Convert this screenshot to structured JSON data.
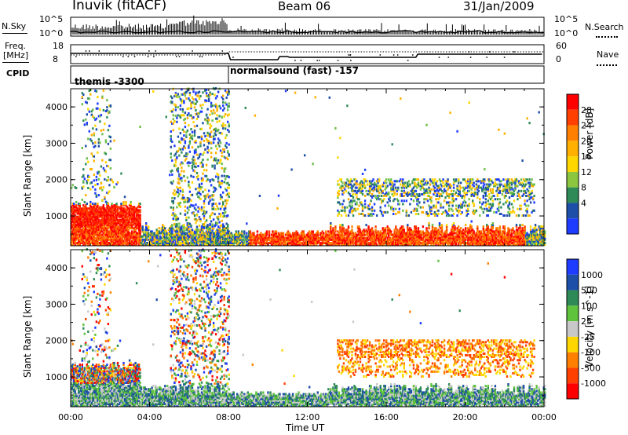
{
  "header": {
    "station": "Inuvik (fitACF)",
    "beam": "Beam 06",
    "date": "31/Jan/2009"
  },
  "nsky_panel": {
    "left_label": "N.Sky",
    "right_label": "N.Search",
    "left_ticks": [
      "10^5",
      "10^0"
    ],
    "right_ticks": [
      "10^5",
      "10^0"
    ]
  },
  "freq_panel": {
    "left_label_1": "Freq.",
    "left_label_2": "[MHz]",
    "right_label": "Nave",
    "left_ticks": [
      "18",
      "8"
    ],
    "right_ticks": [
      "60",
      "0"
    ]
  },
  "cpid_panel": {
    "label": "CPID",
    "segments": [
      {
        "label": "themis -3300",
        "start_hour": 0,
        "end_hour": 8
      },
      {
        "label": "normalsound (fast) -157",
        "start_hour": 8,
        "end_hour": 24
      }
    ]
  },
  "chart_data": [
    {
      "type": "heatmap",
      "title": "Power",
      "xlabel": "Time UT",
      "ylabel": "Slant Range [km]",
      "xlim": [
        0,
        24
      ],
      "ylim": [
        180,
        4500
      ],
      "x_ticks": [
        "00:00",
        "04:00",
        "08:00",
        "12:00",
        "16:00",
        "20:00",
        "00:00"
      ],
      "y_ticks": [
        1000,
        2000,
        3000,
        4000
      ],
      "colorbar": {
        "label": "Power [dB]",
        "ticks": [
          28,
          24,
          20,
          16,
          12,
          8,
          4
        ],
        "colors": [
          "#ff0000",
          "#ff4000",
          "#ff8000",
          "#ffb000",
          "#ffd700",
          "#8cc63f",
          "#2e8b57",
          "#1e4fa8",
          "#1e3cff"
        ]
      }
    },
    {
      "type": "heatmap",
      "title": "Velocity",
      "xlabel": "Time UT",
      "ylabel": "Slant Range [km]",
      "xlim": [
        0,
        24
      ],
      "ylim": [
        180,
        4500
      ],
      "x_ticks": [
        "00:00",
        "04:00",
        "08:00",
        "12:00",
        "16:00",
        "20:00",
        "00:00"
      ],
      "y_ticks": [
        1000,
        2000,
        3000,
        4000
      ],
      "colorbar": {
        "label": "Velocity [m s^-1]",
        "ticks": [
          1000,
          500,
          100,
          25,
          -25,
          -100,
          -500,
          -1000
        ],
        "colors": [
          "#1e3cff",
          "#1e4fa8",
          "#2e8b57",
          "#5fc33c",
          "#c8c8c8",
          "#ffd700",
          "#ff8000",
          "#ff4000",
          "#ff0000"
        ]
      }
    }
  ],
  "xaxis": {
    "tick_labels": [
      "00:00",
      "04:00",
      "08:00",
      "12:00",
      "16:00",
      "20:00",
      "00:00"
    ],
    "label": "Time UT"
  }
}
